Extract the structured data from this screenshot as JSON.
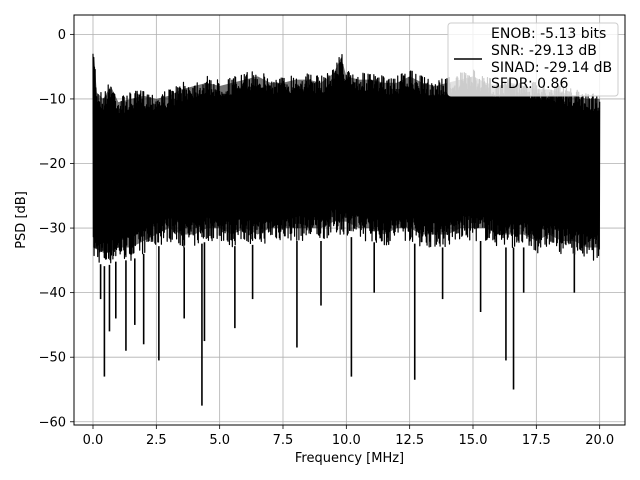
{
  "chart_data": {
    "type": "line",
    "xlabel": "Frequency [MHz]",
    "ylabel": "PSD [dB]",
    "xlim": [
      -0.75,
      21.0
    ],
    "ylim": [
      -60.5,
      3.0
    ],
    "xticks": [
      0.0,
      2.5,
      5.0,
      7.5,
      10.0,
      12.5,
      15.0,
      17.5,
      20.0
    ],
    "xtick_labels": [
      "0.0",
      "2.5",
      "5.0",
      "7.5",
      "10.0",
      "12.5",
      "15.0",
      "17.5",
      "20.0"
    ],
    "yticks": [
      0,
      -10,
      -20,
      -30,
      -40,
      -50,
      -60
    ],
    "ytick_labels": [
      "0",
      "−10",
      "−20",
      "−30",
      "−40",
      "−50",
      "−60"
    ],
    "grid": true,
    "legend_position": "top-right",
    "legend": [
      "ENOB: -5.13 bits",
      "SNR: -29.13 dB",
      "SINAD: -29.14 dB",
      "SFDR: 0.86"
    ],
    "series": [
      {
        "color": "#000000",
        "x_start": 0.0,
        "x_end": 20.0,
        "upper_envelope": [
          [
            0.0,
            -3
          ],
          [
            0.05,
            -2.5
          ],
          [
            0.15,
            -8
          ],
          [
            0.4,
            -9
          ],
          [
            0.7,
            -7
          ],
          [
            1.0,
            -9.5
          ],
          [
            1.5,
            -9
          ],
          [
            2.0,
            -8.5
          ],
          [
            2.5,
            -9
          ],
          [
            3.0,
            -8.5
          ],
          [
            3.5,
            -7.5
          ],
          [
            4.0,
            -7
          ],
          [
            4.5,
            -6.5
          ],
          [
            5.0,
            -7
          ],
          [
            5.5,
            -6.5
          ],
          [
            6.0,
            -6
          ],
          [
            6.5,
            -5.5
          ],
          [
            7.0,
            -6.5
          ],
          [
            7.5,
            -6.5
          ],
          [
            8.0,
            -6
          ],
          [
            8.5,
            -6
          ],
          [
            9.0,
            -6.5
          ],
          [
            9.5,
            -5
          ],
          [
            9.8,
            -2.5
          ],
          [
            10.0,
            -5.5
          ],
          [
            10.5,
            -6
          ],
          [
            11.0,
            -6
          ],
          [
            11.5,
            -6.5
          ],
          [
            12.0,
            -6.5
          ],
          [
            12.5,
            -5.5
          ],
          [
            13.0,
            -6.5
          ],
          [
            13.5,
            -7
          ],
          [
            14.0,
            -6.5
          ],
          [
            14.5,
            -6
          ],
          [
            15.0,
            -5.5
          ],
          [
            15.5,
            -6.5
          ],
          [
            16.0,
            -7
          ],
          [
            16.5,
            -6.5
          ],
          [
            17.0,
            -7
          ],
          [
            17.5,
            -7.5
          ],
          [
            18.0,
            -7.5
          ],
          [
            18.5,
            -8
          ],
          [
            19.0,
            -8.5
          ],
          [
            19.5,
            -9
          ],
          [
            20.0,
            -9
          ]
        ],
        "lower_envelope": [
          [
            0.0,
            -35
          ],
          [
            0.5,
            -36
          ],
          [
            1.0,
            -35
          ],
          [
            1.5,
            -35
          ],
          [
            2.0,
            -34
          ],
          [
            2.5,
            -33
          ],
          [
            3.0,
            -32
          ],
          [
            3.5,
            -33
          ],
          [
            4.0,
            -33
          ],
          [
            4.5,
            -32
          ],
          [
            5.0,
            -32
          ],
          [
            5.5,
            -33
          ],
          [
            6.0,
            -32
          ],
          [
            6.5,
            -33
          ],
          [
            7.0,
            -32
          ],
          [
            7.5,
            -32
          ],
          [
            8.0,
            -32
          ],
          [
            8.5,
            -32
          ],
          [
            9.0,
            -32
          ],
          [
            9.5,
            -31
          ],
          [
            10.0,
            -31
          ],
          [
            10.5,
            -32
          ],
          [
            11.0,
            -32
          ],
          [
            11.5,
            -33
          ],
          [
            12.0,
            -32
          ],
          [
            12.5,
            -32
          ],
          [
            13.0,
            -33
          ],
          [
            13.5,
            -33
          ],
          [
            14.0,
            -33
          ],
          [
            14.5,
            -32
          ],
          [
            15.0,
            -32
          ],
          [
            15.5,
            -32
          ],
          [
            16.0,
            -33
          ],
          [
            16.5,
            -33
          ],
          [
            17.0,
            -33
          ],
          [
            17.5,
            -34
          ],
          [
            18.0,
            -33
          ],
          [
            18.5,
            -34
          ],
          [
            19.0,
            -34
          ],
          [
            19.5,
            -35
          ],
          [
            20.0,
            -35
          ]
        ],
        "deep_dips": [
          [
            0.3,
            -41
          ],
          [
            0.45,
            -53
          ],
          [
            0.65,
            -46
          ],
          [
            0.9,
            -44
          ],
          [
            1.3,
            -49
          ],
          [
            1.65,
            -45
          ],
          [
            2.0,
            -48
          ],
          [
            2.6,
            -50.5
          ],
          [
            3.6,
            -44
          ],
          [
            4.3,
            -57.5
          ],
          [
            4.4,
            -47.5
          ],
          [
            5.6,
            -45.5
          ],
          [
            6.3,
            -41
          ],
          [
            8.05,
            -48.5
          ],
          [
            9.0,
            -42
          ],
          [
            10.2,
            -53
          ],
          [
            11.1,
            -40
          ],
          [
            12.7,
            -53.5
          ],
          [
            13.8,
            -41
          ],
          [
            15.3,
            -43
          ],
          [
            16.3,
            -50.5
          ],
          [
            16.6,
            -55
          ],
          [
            17.0,
            -40
          ],
          [
            19.0,
            -40
          ]
        ]
      }
    ]
  }
}
